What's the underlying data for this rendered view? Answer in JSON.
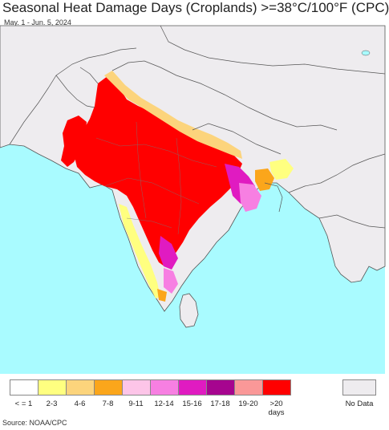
{
  "header": {
    "title": "Seasonal Heat Damage Days (Croplands) >=38°C/100°F (CPC)",
    "date_range": "May. 1 - Jun. 5, 2024"
  },
  "legend": {
    "items": [
      {
        "label": "< = 1",
        "color": "#ffffff"
      },
      {
        "label": "2-3",
        "color": "#ffff80"
      },
      {
        "label": "4-6",
        "color": "#fcd47c"
      },
      {
        "label": "7-8",
        "color": "#fba61b"
      },
      {
        "label": "9-11",
        "color": "#fdc5e8"
      },
      {
        "label": "12-14",
        "color": "#f77fe2"
      },
      {
        "label": "15-16",
        "color": "#e01bc1"
      },
      {
        "label": "17-18",
        "color": "#a6058f"
      },
      {
        "label": "19-20",
        "color": "#fa9898"
      },
      {
        "label": ">20 days",
        "color": "#ff0000"
      }
    ],
    "no_data": {
      "label": "No Data",
      "color": "#eeecef"
    }
  },
  "colors": {
    "ocean": "#a9fbff",
    "land": "#eeecef",
    "border": "#555555"
  },
  "footer": {
    "source": "Source: NOAA/CPC"
  }
}
